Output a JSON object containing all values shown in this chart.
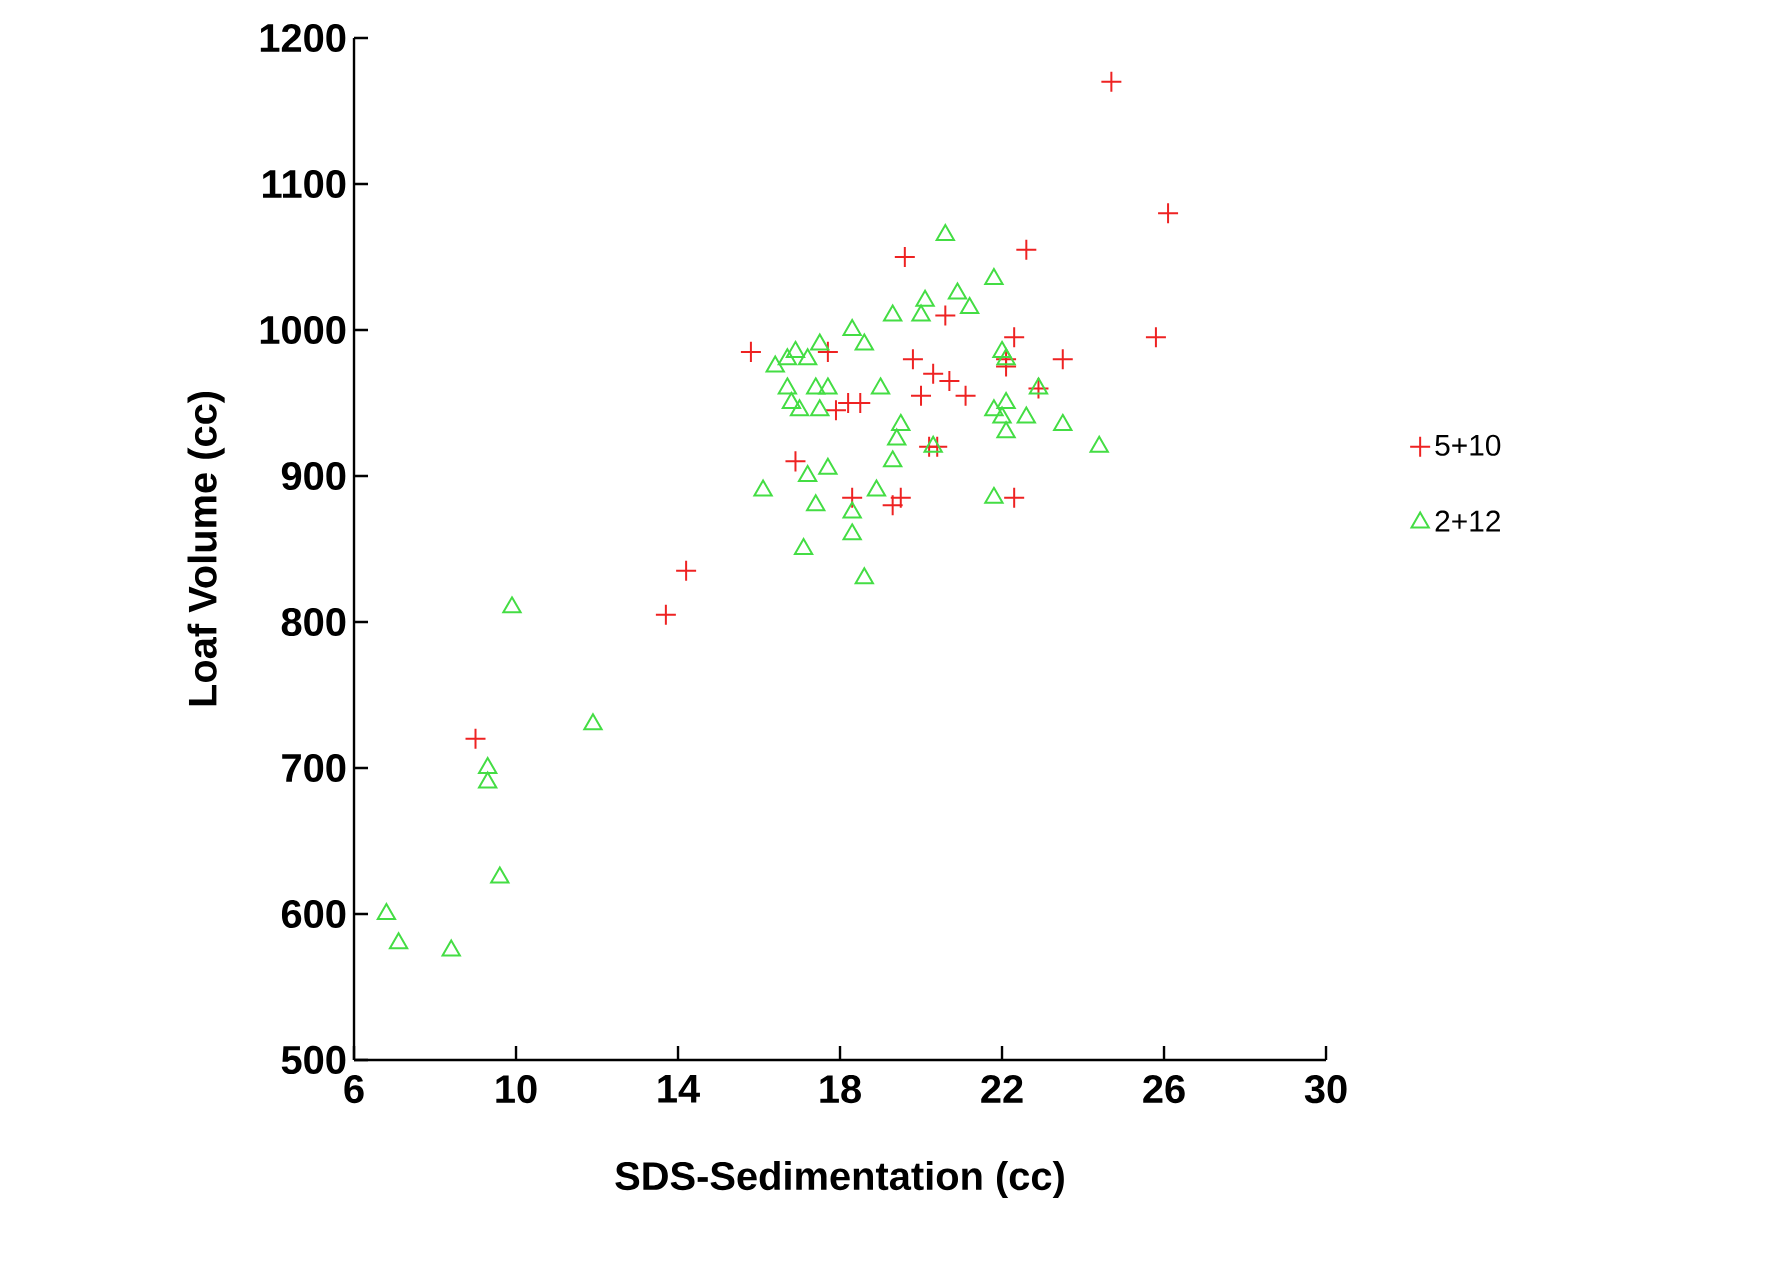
{
  "chart_data": {
    "type": "scatter",
    "xlabel": "SDS-Sedimentation  (cc)",
    "ylabel": "Loaf Volume (cc)",
    "xlim": [
      6,
      30
    ],
    "xticks": [
      6,
      10,
      14,
      18,
      22,
      26,
      30
    ],
    "ylim": [
      500,
      1200
    ],
    "yticks": [
      500,
      600,
      700,
      800,
      900,
      1000,
      1100,
      1200
    ],
    "grid": false,
    "legend": "right",
    "series": [
      {
        "name": "5+10",
        "color": "#ee2222",
        "marker": "cross",
        "x": [
          24.7,
          26.1,
          25.8,
          22.6,
          19.6,
          20.6,
          22.3,
          22.1,
          23.5,
          15.8,
          17.7,
          19.8,
          20.3,
          20.7,
          21.1,
          20.0,
          18.2,
          18.5,
          17.9,
          22.9,
          22.1,
          16.9,
          18.3,
          19.5,
          19.3,
          20.2,
          20.4,
          22.3,
          14.2,
          13.7,
          9.0
        ],
        "values": [
          1170,
          1080,
          995,
          1055,
          1050,
          1010,
          995,
          980,
          980,
          985,
          985,
          980,
          970,
          965,
          955,
          955,
          950,
          950,
          945,
          960,
          975,
          910,
          885,
          885,
          880,
          920,
          920,
          885,
          835,
          805,
          720
        ]
      },
      {
        "name": "2+12",
        "color": "#44dd44",
        "marker": "triangle",
        "x": [
          6.8,
          7.1,
          8.4,
          9.6,
          9.3,
          9.3,
          9.9,
          11.9,
          16.1,
          16.4,
          16.7,
          16.9,
          17.2,
          17.5,
          16.7,
          16.8,
          17.0,
          17.4,
          17.7,
          17.5,
          17.2,
          17.4,
          17.1,
          17.7,
          18.3,
          18.6,
          18.3,
          18.3,
          18.6,
          19.0,
          19.3,
          19.4,
          19.5,
          19.3,
          18.9,
          20.0,
          20.1,
          20.6,
          20.9,
          21.2,
          21.8,
          20.3,
          21.8,
          22.0,
          22.1,
          22.1,
          22.0,
          22.1,
          22.6,
          22.9,
          23.5,
          24.4,
          21.8
        ],
        "values": [
          600,
          580,
          575,
          625,
          700,
          690,
          810,
          730,
          890,
          975,
          980,
          985,
          980,
          990,
          960,
          950,
          945,
          960,
          960,
          945,
          900,
          880,
          850,
          905,
          1000,
          990,
          875,
          860,
          830,
          960,
          1010,
          925,
          935,
          910,
          890,
          1010,
          1020,
          1065,
          1025,
          1015,
          1035,
          920,
          945,
          985,
          980,
          950,
          940,
          930,
          940,
          960,
          935,
          920,
          885
        ]
      }
    ]
  }
}
